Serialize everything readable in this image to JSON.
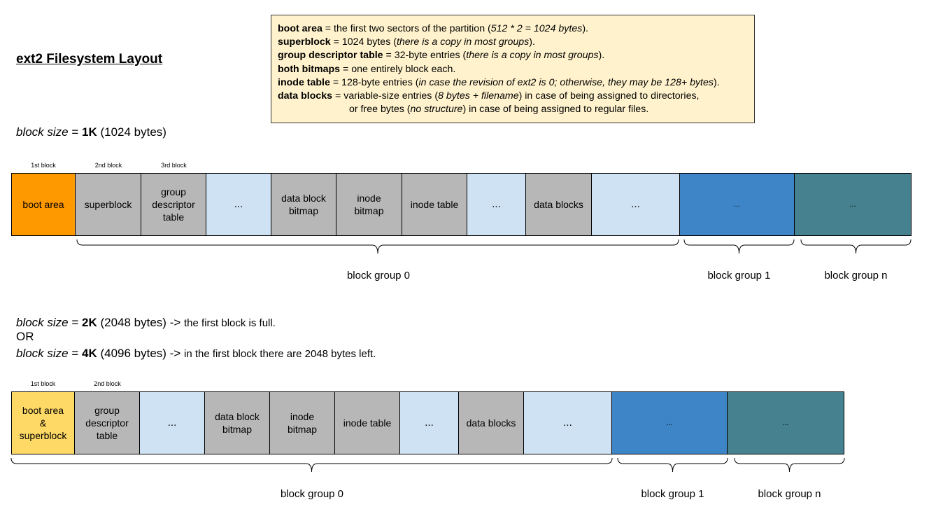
{
  "title": "ext2 Filesystem Layout",
  "legend": [
    {
      "bold": "boot area",
      "text": " = the first two sectors of the partition (",
      "italic": "512 * 2 = 1024 bytes",
      "after": ")."
    },
    {
      "bold": "superblock",
      "text": " = 1024 bytes (",
      "italic": "there is a copy in most groups",
      "after": ")."
    },
    {
      "bold": "group descriptor table",
      "text": " = 32-byte entries (",
      "italic": "there is a copy in most groups",
      "after": ")."
    },
    {
      "bold": "both bitmaps",
      "text": " = one entirely block each.",
      "italic": "",
      "after": ""
    },
    {
      "bold": "inode table",
      "text": " = 128-byte entries (",
      "italic": "in case the revision of ext2 is 0; otherwise, they may be 128+ bytes",
      "after": ")."
    },
    {
      "bold": "data blocks",
      "text": " = variable-size entries (",
      "italic": "8 bytes + filename",
      "after": ") in case of being assigned to directories,"
    },
    {
      "bold": "",
      "text": "or free bytes (",
      "italic": "no structure",
      "after": ") in case of being assigned to regular files."
    }
  ],
  "section1": {
    "size_label": "block size",
    "eq": " = ",
    "size": "1K",
    "bytes": " (1024 bytes)",
    "block_labels": [
      "1st block",
      "2nd block",
      "3rd block"
    ],
    "cells": [
      {
        "label": "boot area",
        "color": "#ff9900"
      },
      {
        "label": "superblock",
        "color": "#b7b7b7"
      },
      {
        "label": "group\ndescriptor\ntable",
        "color": "#b7b7b7"
      },
      {
        "label": "...",
        "color": "#cfe2f3"
      },
      {
        "label": "data block\nbitmap",
        "color": "#b7b7b7"
      },
      {
        "label": "inode\nbitmap",
        "color": "#b7b7b7"
      },
      {
        "label": "inode table",
        "color": "#b7b7b7"
      },
      {
        "label": "...",
        "color": "#cfe2f3"
      },
      {
        "label": "data blocks",
        "color": "#b7b7b7"
      },
      {
        "label": "...",
        "color": "#cfe2f3"
      },
      {
        "label": "...",
        "color": "#3d85c6"
      },
      {
        "label": "...",
        "color": "#45818e"
      }
    ],
    "groups": [
      "block group 0",
      "block group 1",
      "block group n"
    ]
  },
  "section2": {
    "line1": {
      "size_label": "block size",
      "eq": " = ",
      "size": "2K",
      "bytes": " (2048 bytes) -> ",
      "note": "the first block is full."
    },
    "or": "OR",
    "line2": {
      "size_label": "block size",
      "eq": " = ",
      "size": "4K",
      "bytes": " (4096 bytes) -> ",
      "note": "in the first block there are 2048 bytes left."
    },
    "block_labels": [
      "1st block",
      "2nd block"
    ],
    "cells": [
      {
        "label": "boot area\n&\nsuperblock",
        "color": "#ffd966"
      },
      {
        "label": "group\ndescriptor\ntable",
        "color": "#b7b7b7"
      },
      {
        "label": "...",
        "color": "#cfe2f3"
      },
      {
        "label": "data block\nbitmap",
        "color": "#b7b7b7"
      },
      {
        "label": "inode\nbitmap",
        "color": "#b7b7b7"
      },
      {
        "label": "inode table",
        "color": "#b7b7b7"
      },
      {
        "label": "...",
        "color": "#cfe2f3"
      },
      {
        "label": "data blocks",
        "color": "#b7b7b7"
      },
      {
        "label": "...",
        "color": "#cfe2f3"
      },
      {
        "label": "...",
        "color": "#3d85c6"
      },
      {
        "label": "...",
        "color": "#45818e"
      }
    ],
    "groups": [
      "block group 0",
      "block group 1",
      "block group n"
    ]
  }
}
